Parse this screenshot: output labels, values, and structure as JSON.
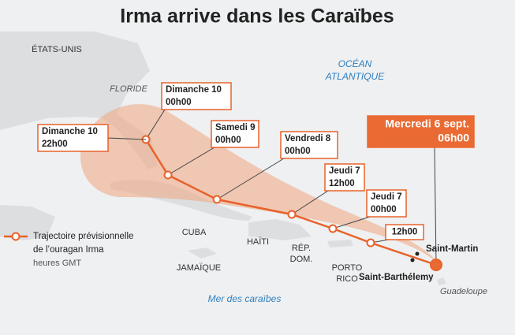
{
  "title": "Irma arrive dans les Caraïbes",
  "places": [
    [
      "ÉTATS-UNIS"
    ],
    [
      "CUBA"
    ],
    [
      "HAÏTI"
    ],
    [
      "RÉP.",
      "DOM."
    ],
    [
      "JAMAÏQUE"
    ],
    [
      "PORTO",
      "RICO"
    ]
  ],
  "floride": "FLORIDE",
  "waters": [
    [
      "OCÉAN",
      "ATLANTIQUE"
    ],
    [
      "Mer des caraïbes"
    ]
  ],
  "track": [
    {
      "day": "Mercredi 6 sept.",
      "time": "06h00"
    },
    {
      "time": "12h00"
    },
    {
      "day": "Jeudi 7",
      "time": "00h00"
    },
    {
      "day": "Jeudi 7",
      "time": "12h00"
    },
    {
      "day": "Vendredi 8",
      "time": "00h00"
    },
    {
      "day": "Samedi 9",
      "time": "00h00"
    },
    {
      "day": "Dimanche 10",
      "time": "00h00"
    },
    {
      "day": "Dimanche 10",
      "time": "22h00"
    }
  ],
  "islands": {
    "saint_martin": "Saint-Martin",
    "saint_barthelemy": "Saint-Barthélemy",
    "guadeloupe": "Guadeloupe"
  },
  "legend": {
    "line1": "Trajectoire prévisionnelle",
    "line2": "de l’ouragan Irma",
    "note": "heures GMT"
  }
}
